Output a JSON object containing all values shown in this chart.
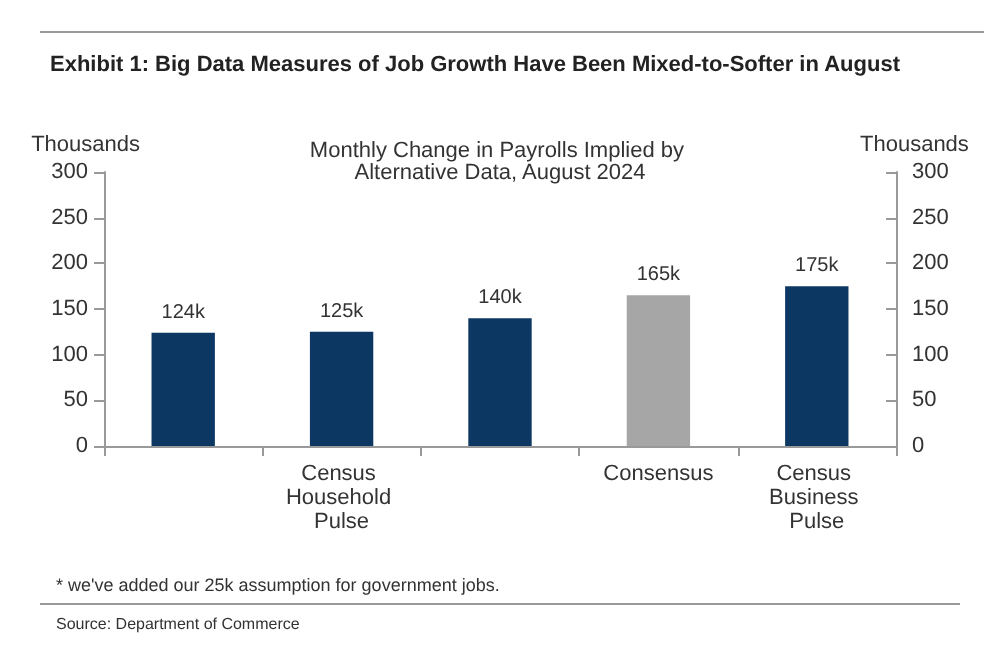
{
  "chart_data": {
    "type": "bar",
    "title": "Exhibit 1: Big Data Measures of Job Growth Have Been Mixed-to-Softer in August",
    "subtitle": "Monthly Change in Payrolls Implied by Alternative Data, August 2024",
    "ylabel": "Thousands",
    "y2label": "Thousands",
    "categories": [
      null,
      "Census Household Pulse",
      null,
      "Consensus",
      "Census Business Pulse"
    ],
    "values": [
      124,
      125,
      140,
      165,
      175
    ],
    "colors": [
      "#0b3762",
      "#0b3762",
      "#0b3762",
      "#a6a6a6",
      "#0b3762"
    ],
    "value_labels": [
      "124k",
      "125k",
      "140k",
      "165k",
      "175k"
    ],
    "ylim": [
      0,
      300
    ],
    "yticks": [
      0,
      50,
      100,
      150,
      200,
      250,
      300
    ],
    "y2lim": [
      0,
      300
    ],
    "y2ticks": [
      0,
      50,
      100,
      150,
      200,
      250,
      300
    ],
    "grid": false,
    "annotations": [
      "* we've added our 25k assumption for government jobs.",
      "Source: Department of Commerce"
    ]
  }
}
